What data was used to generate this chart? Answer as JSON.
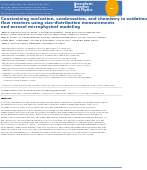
{
  "bg_color": "#ffffff",
  "top_bar_color": "#4575b4",
  "header_lines": [
    "Atmos. Chem. Phys., 22, 12123-12148, 2022",
    "https://doi.org/10.5194/acp-22-12123-2022",
    "© Author(s) 2022. This work is distributed under",
    "the Creative Commons Attribution 4.0 License."
  ],
  "journal_line1": "Atmospheric",
  "journal_line2": "Chemistry",
  "journal_line3": "and Physics",
  "journal_color": "#3a7bbf",
  "egu_color": "#f5a800",
  "title_lines": [
    "Constraining nucleation, condensation, and chemistry in oxidation",
    "flow reactors using size-distribution measurements",
    "and aerosol microphysical modeling"
  ],
  "title_color": "#1f4e8c",
  "author_lines": [
    "James E. Ridelberg, Brett R. Ryder¹, Christopher University¹, Dolan Ross, Vishnu Ganesan Iyer¹,",
    "Brian C. Coeck, Ruiqing He, Rhys Alistair Tulloch, James Bixby¹, Gregory O. Ribeiro¹,",
    "Mark D. Connor, M. Habibi Damghani De Blasi¹, Renaud Edouard, Jean C. Kolling, Amara O. Ubanwa,",
    "Shawn Peter¹, Glenn Bean¹, Thomas R. Hargreaves, Irene M. Gold¹, Lisa Bugg, Roger¹ Ewald,",
    "James T. O’Mullin, Kevin L. Dammann¹, and Nathan D. Harris¹"
  ],
  "affil_lines": [
    "¹Department of Chemistry, University of California Davis, Davis, CA 95616, USA",
    "²Department of Chemistry, Carnegie Mellon University, Pittsburgh, PA 15213, USA",
    "³Faculty of Chemical and Life Sciences, Berlin University of Technology, Berlin 10587, Germany",
    "⁴Department of Atmospheric Sciences, University of Washington, Seattle, WA 98195, USA",
    "⁵Institute for Atmospheric and Climate Science, ETH Zurich, Zurich 8092, Switzerland",
    "⁶Department of Atmospheric Composition Research, Juelich Research Centre, Juelich 52428, Germany",
    "⁷Atmospheric Environment Research Institute, Brookhaven National Laboratory, Upton, NY 11973, USA",
    "⁸Institute for Atmospheric and Cryospheric Sciences, University of Innsbruck, Innsbruck 6020, Austria",
    "⁹Department of Chemistry, University of Melbourne, Melbourne, Vic 3010, Australia",
    "¹⁰Department of Chemistry, University of Oklahoma Science, Norman, OK 73019, USA",
    "¹¹Department of Atmospheric Science, University of Colorado Boulder, Boulder, CO 80309, USA",
    "¹²Centre for Atmospheric Sciences, Indian Institute of Technology, New Delhi 110016, India",
    "¹³School of Chemistry and the Quebec Research Center of Excellence in Research at Riverside (CERB),",
    "     University of Chile, Republic of Chile"
  ],
  "italic_line": "Invited contribution by Brett Ryder, recipient of the EGU Atmospheric Sciences Division Outstanding Young Scientist Award 2019.",
  "corr_line": "Correspondence: James E. Ridelberg (james.ridelberg@ucdavis.edu)",
  "received_line": "Received: 15 Feb 2022 – Discussion started: 17 March 2022 – Revised: 31 August 2022 – Published: 18 October 2022",
  "abstract_label": "Abstract.",
  "abstract_body": "Oxidation flow reactors (OFRs) allow the controlled exposure of ambient or laboratory-generated organic vapors to oxidants such as OH and ozone at concentrations typically orders of magnitude higher than typical tropospheric levels. Particle size distributions are often measured at the inlet and outlet of OFRs to characterize the secondary organic aerosol (SOA) formed. For the same study, we use particle size-distribution measurements collected in an OFR to constrain nucleation and condensation processes in the OFR. To do so, we use an aerosol microphysical model that explicitly simulates nucleation, condensation and coagulation of aerosol particles formed in the OFR. The model was used to constrain the following parameters in the OFR: (1) the rate constant of a condensing compound, (2) the nucleation rate, and (3) the particle wall-loss rate. We find that the OFR size distributions can constrain nucleation and condensation of compounds with saturation concentration (C*) below 10⁻² μg·m⁻³, and we identify condensation of compounds with intermediate volatility as a potential condensation process in the OFR. Specifically, we compare the measured size distributions with those calculated from our OFR model using literature values for the nucleation mechanism of sulfuric acid, we constrain the condensation of low-volatility organic compounds (LVOCs) in the OFR using the size-distribution measurements, and we use an OFR chemical model to evaluate nucleation processes in the OFR.",
  "published_line": "Published by Copernicus Publications on behalf of the European Geosciences Union.",
  "separator_color": "#cccccc",
  "bottom_line_color": "#4575b4",
  "text_color": "#222222",
  "small_text_color": "#444444"
}
